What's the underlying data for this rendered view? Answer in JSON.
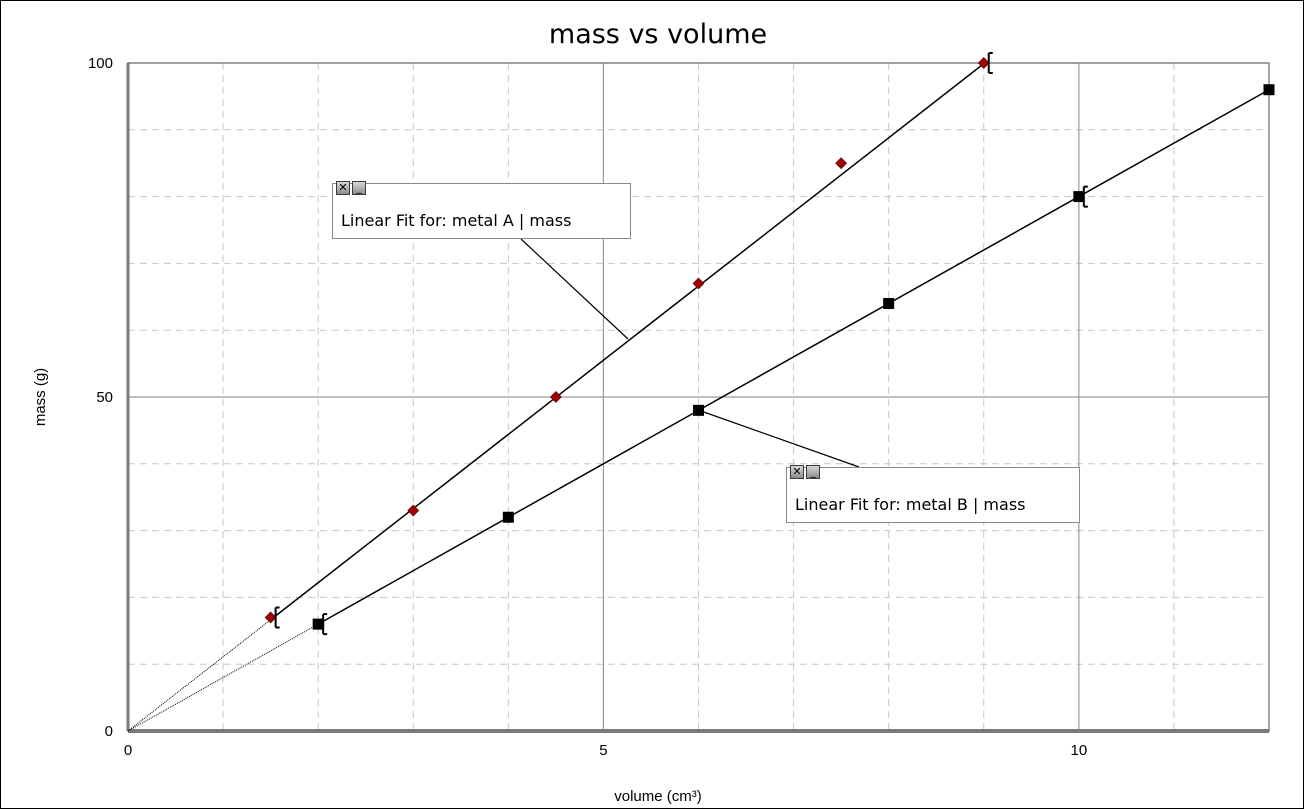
{
  "chart_data": {
    "type": "scatter",
    "title": "mass vs volume",
    "xlabel": "volume (cm³)",
    "ylabel": "mass (g)",
    "xlim": [
      0,
      12
    ],
    "ylim": [
      0,
      100
    ],
    "x_ticks": [
      0,
      5,
      10
    ],
    "y_ticks": [
      0,
      50,
      100
    ],
    "grid": true,
    "series": [
      {
        "name": "metal A",
        "marker": "diamond",
        "color": "#a00000",
        "x": [
          1.5,
          3,
          4.5,
          6,
          7.5,
          9
        ],
        "y": [
          17,
          33,
          50,
          67,
          85,
          100
        ],
        "error_bar_points": [
          1.5,
          9
        ],
        "fit": {
          "slope": 11.1,
          "intercept": 0
        }
      },
      {
        "name": "metal B",
        "marker": "square",
        "color": "#000000",
        "x": [
          2,
          4,
          6,
          8,
          10,
          12
        ],
        "y": [
          16,
          32,
          48,
          64,
          80,
          96
        ],
        "error_bar_points": [
          2,
          10
        ],
        "fit": {
          "slope": 8,
          "intercept": 0
        }
      }
    ]
  },
  "annotations": {
    "fit_a": {
      "label": "Linear Fit for: metal A | mass",
      "close": "✕",
      "minimize": "_"
    },
    "fit_b": {
      "label": "Linear Fit for: metal B | mass",
      "close": "✕",
      "minimize": "_"
    }
  }
}
